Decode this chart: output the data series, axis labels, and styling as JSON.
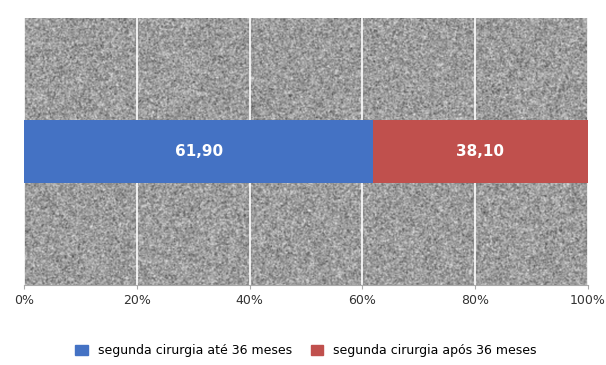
{
  "bar1_value": 61.9,
  "bar2_value": 38.1,
  "bar1_color": "#4472C4",
  "bar2_color": "#C0504D",
  "bar1_label": "segunda cirurgia até 36 meses",
  "bar2_label": "segunda cirurgia após 36 meses",
  "bar1_text": "61,90",
  "bar2_text": "38,10",
  "text_color": "#FFFFFF",
  "fig_background": "#FFFFFF",
  "plot_background": "#E8E8E8",
  "xlim": [
    0,
    100
  ],
  "xticks": [
    0,
    20,
    40,
    60,
    80,
    100
  ],
  "xtick_labels": [
    "0%",
    "20%",
    "40%",
    "60%",
    "80%",
    "100%"
  ],
  "label_fontsize": 11,
  "tick_fontsize": 9,
  "legend_fontsize": 9,
  "bar_height": 0.38
}
